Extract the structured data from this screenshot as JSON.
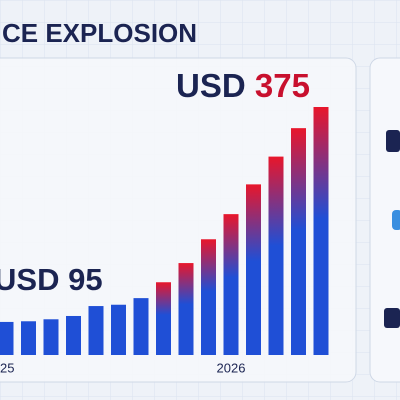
{
  "chart_data": {
    "type": "bar",
    "title": "CE EXPLOSION",
    "annotations": [
      {
        "prefix": "USD",
        "amount": "375"
      },
      {
        "prefix": "USD",
        "amount": "95"
      }
    ],
    "categories": [
      "25",
      null,
      null,
      null,
      null,
      null,
      null,
      null,
      null,
      null,
      "2026",
      null,
      null,
      null,
      null
    ],
    "values": [
      50,
      51,
      54,
      59,
      74,
      76,
      86,
      110,
      139,
      175,
      213,
      258,
      300,
      343,
      375
    ],
    "ylim": [
      0,
      375
    ],
    "colors": {
      "low": "#1f4fd6",
      "high": "#e8162b",
      "text": "#1b2452"
    }
  }
}
